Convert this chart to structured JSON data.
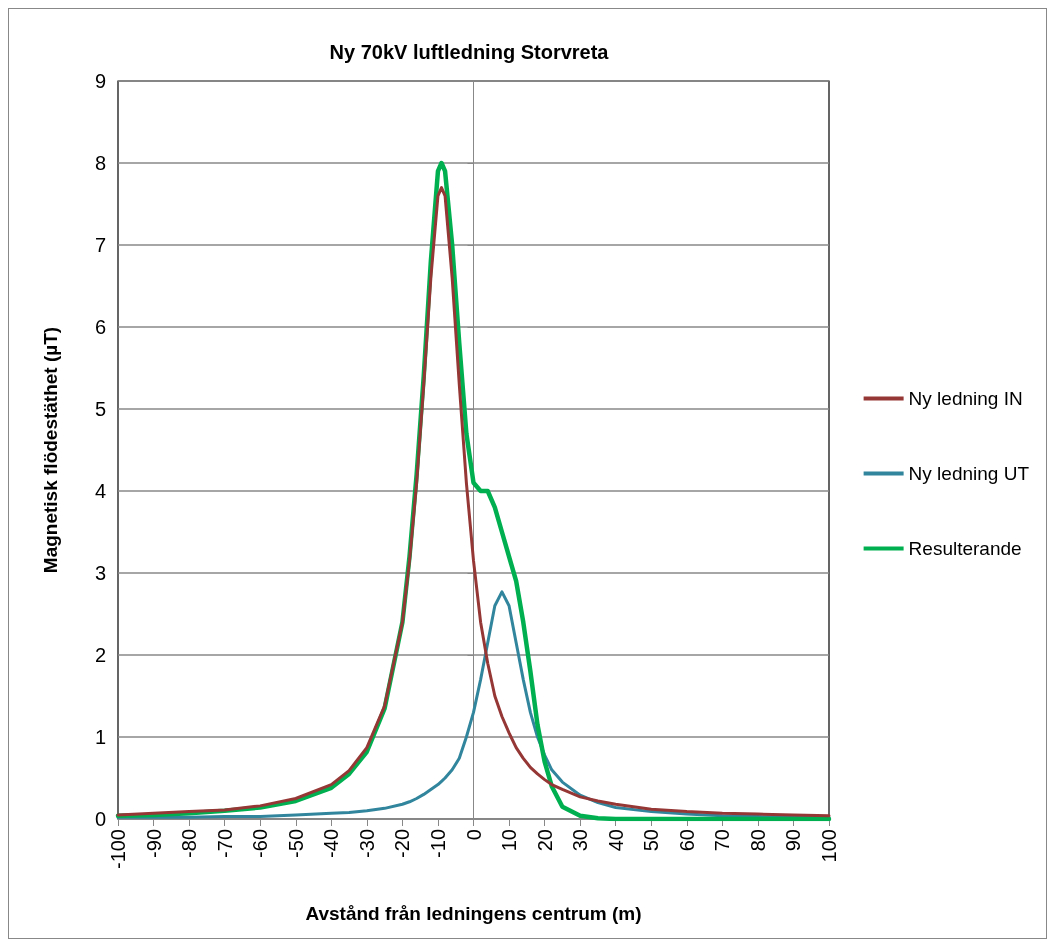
{
  "chart_data": {
    "type": "line",
    "title": "Ny 70kV luftledning Storvreta",
    "xlabel": "Avstånd från ledningens centrum (m)",
    "ylabel": "Magnetisk flödestäthet (µT)",
    "x": [
      -100,
      -90,
      -80,
      -70,
      -60,
      -50,
      -40,
      -35,
      -30,
      -25,
      -20,
      -18,
      -16,
      -14,
      -12,
      -10,
      -9,
      -8,
      -6,
      -4,
      -2,
      0,
      2,
      4,
      6,
      8,
      10,
      12,
      14,
      16,
      18,
      20,
      22,
      25,
      30,
      35,
      40,
      50,
      60,
      70,
      80,
      90,
      100
    ],
    "series": [
      {
        "name": "Ny ledning IN",
        "color": "#953735",
        "values": [
          0.05,
          0.07,
          0.09,
          0.11,
          0.16,
          0.25,
          0.42,
          0.59,
          0.87,
          1.38,
          2.4,
          3.15,
          4.1,
          5.3,
          6.6,
          7.6,
          7.7,
          7.6,
          6.6,
          5.3,
          4.1,
          3.15,
          2.4,
          1.9,
          1.5,
          1.25,
          1.05,
          0.87,
          0.74,
          0.63,
          0.55,
          0.48,
          0.42,
          0.36,
          0.27,
          0.22,
          0.18,
          0.12,
          0.09,
          0.07,
          0.06,
          0.05,
          0.04
        ]
      },
      {
        "name": "Ny ledning UT",
        "color": "#31859c",
        "values": [
          0.02,
          0.02,
          0.02,
          0.03,
          0.03,
          0.05,
          0.07,
          0.08,
          0.1,
          0.13,
          0.18,
          0.21,
          0.25,
          0.3,
          0.36,
          0.42,
          0.46,
          0.5,
          0.6,
          0.74,
          1.0,
          1.3,
          1.7,
          2.15,
          2.6,
          2.77,
          2.6,
          2.15,
          1.7,
          1.3,
          1.0,
          0.78,
          0.6,
          0.45,
          0.29,
          0.2,
          0.14,
          0.09,
          0.06,
          0.04,
          0.03,
          0.02,
          0.02
        ]
      },
      {
        "name": "Resulterande",
        "color": "#00b050",
        "values": [
          0.04,
          0.05,
          0.07,
          0.1,
          0.14,
          0.22,
          0.38,
          0.55,
          0.82,
          1.35,
          2.4,
          3.2,
          4.2,
          5.4,
          6.8,
          7.9,
          8.0,
          7.9,
          7.0,
          5.8,
          4.7,
          4.1,
          4.0,
          4.0,
          3.8,
          3.5,
          3.2,
          2.9,
          2.4,
          1.8,
          1.15,
          0.7,
          0.4,
          0.15,
          0.04,
          0.01,
          0.0,
          0.0,
          0.0,
          0.0,
          0.0,
          0.0,
          0.0
        ]
      }
    ],
    "xlim": [
      -100,
      100
    ],
    "xticks": [
      -100,
      -90,
      -80,
      -70,
      -60,
      -50,
      -40,
      -30,
      -20,
      -10,
      0,
      10,
      20,
      30,
      40,
      50,
      60,
      70,
      80,
      90,
      100
    ],
    "ylim": [
      0,
      9
    ],
    "yticks": [
      0,
      1,
      2,
      3,
      4,
      5,
      6,
      7,
      8,
      9
    ],
    "grid": "y",
    "legend": "right",
    "marker": "none",
    "line_style": "solid"
  }
}
